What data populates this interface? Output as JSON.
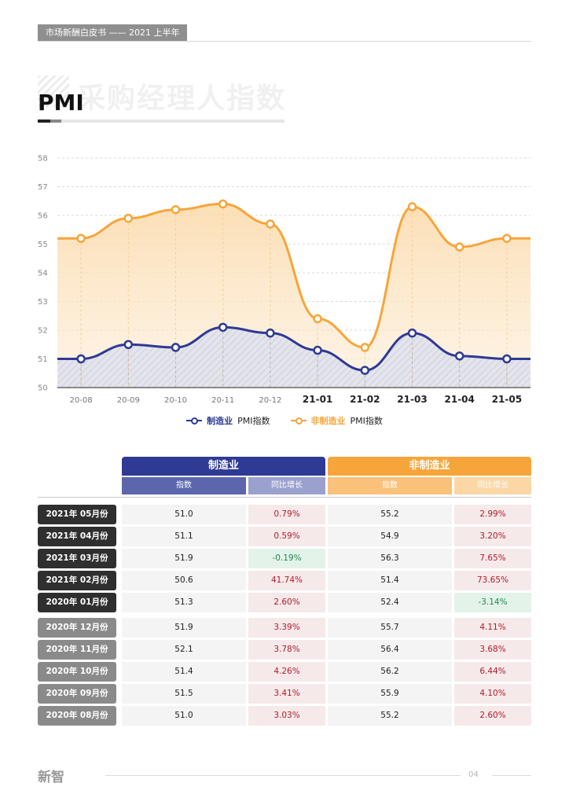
{
  "header": {
    "tag": "市场新酬白皮书 —— 2021 上半年"
  },
  "section": {
    "title": "PMI",
    "watermark_title": "采购经理人指数"
  },
  "chart_data": {
    "type": "area",
    "categories": [
      "20-08",
      "20-09",
      "20-10",
      "20-11",
      "20-12",
      "21-01",
      "21-02",
      "21-03",
      "21-04",
      "21-05"
    ],
    "ylim": [
      50,
      58
    ],
    "yticks": [
      50,
      51,
      52,
      53,
      54,
      55,
      56,
      57,
      58
    ],
    "grid": true,
    "legend_position": "bottom-center",
    "series": [
      {
        "name_colored": "制造业",
        "name_suffix": "PMI指数",
        "color": "#2e3a94",
        "values": [
          51.0,
          51.5,
          51.4,
          52.1,
          51.9,
          51.3,
          50.6,
          51.9,
          51.1,
          51.0
        ]
      },
      {
        "name_colored": "非制造业",
        "name_suffix": "PMI指数",
        "color": "#f6a53a",
        "values": [
          55.2,
          55.9,
          56.2,
          56.4,
          55.7,
          52.4,
          51.4,
          56.3,
          54.9,
          55.2
        ]
      }
    ]
  },
  "table": {
    "groups": [
      {
        "title": "制造业",
        "sub": [
          "指数",
          "同比增长"
        ],
        "color": "#2e3a94",
        "sub_colors": [
          "#5b66ad",
          "#9ba1cf"
        ]
      },
      {
        "title": "非制造业",
        "sub": [
          "指数",
          "同比增长"
        ],
        "color": "#f6a53a",
        "sub_colors": [
          "#f9c17a",
          "#fbd7a6"
        ]
      }
    ],
    "rows": [
      {
        "label": "2021年 05月份",
        "m_idx": "51.0",
        "m_yoy": "0.79%",
        "n_idx": "55.2",
        "n_yoy": "2.99%"
      },
      {
        "label": "2021年 04月份",
        "m_idx": "51.1",
        "m_yoy": "0.59%",
        "n_idx": "54.9",
        "n_yoy": "3.20%"
      },
      {
        "label": "2021年 03月份",
        "m_idx": "51.9",
        "m_yoy": "-0.19%",
        "n_idx": "56.3",
        "n_yoy": "7.65%"
      },
      {
        "label": "2021年 02月份",
        "m_idx": "50.6",
        "m_yoy": "41.74%",
        "n_idx": "51.4",
        "n_yoy": "73.65%"
      },
      {
        "label": "2020年 01月份",
        "m_idx": "51.3",
        "m_yoy": "2.60%",
        "n_idx": "52.4",
        "n_yoy": "-3.14%"
      },
      {
        "label": "2020年 12月份",
        "m_idx": "51.9",
        "m_yoy": "3.39%",
        "n_idx": "55.7",
        "n_yoy": "4.11%"
      },
      {
        "label": "2020年 11月份",
        "m_idx": "52.1",
        "m_yoy": "3.78%",
        "n_idx": "56.4",
        "n_yoy": "3.68%"
      },
      {
        "label": "2020年 10月份",
        "m_idx": "51.4",
        "m_yoy": "4.26%",
        "n_idx": "56.2",
        "n_yoy": "6.44%"
      },
      {
        "label": "2020年 09月份",
        "m_idx": "51.5",
        "m_yoy": "3.41%",
        "n_idx": "55.9",
        "n_yoy": "4.10%"
      },
      {
        "label": "2020年 08月份",
        "m_idx": "51.0",
        "m_yoy": "3.03%",
        "n_idx": "55.2",
        "n_yoy": "2.60%"
      }
    ],
    "colors": {
      "label_2021": "#2f2f2f",
      "label_2020": "#8a8a8a",
      "pos_text": "#b01c2a",
      "neg_text": "#1f8a4c",
      "pos_bg": "#f6e9ea",
      "neg_bg": "#e3f3ea",
      "idx_bg": "#f4f4f4"
    }
  },
  "footer": {
    "logo": "新智",
    "page": "04"
  }
}
